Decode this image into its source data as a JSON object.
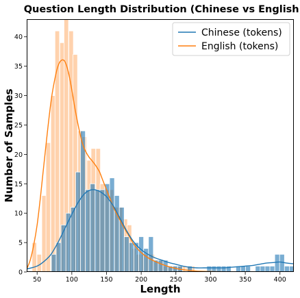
{
  "chart_data": {
    "type": "bar",
    "title": "Question Length Distribution (Chinese vs English)",
    "xlabel": "Length",
    "ylabel": "Number of Samples",
    "xlim": [
      35,
      420
    ],
    "ylim": [
      0,
      43
    ],
    "xticks": [
      50,
      100,
      150,
      200,
      250,
      300,
      350,
      400
    ],
    "yticks": [
      0,
      5,
      10,
      15,
      20,
      25,
      30,
      35,
      40
    ],
    "grid": false,
    "legend_position": "top-right",
    "series": [
      {
        "name": "Chinese (tokens)",
        "color": "#1f77b4",
        "bar_width": 7,
        "bars": [
          [
            74,
            3
          ],
          [
            81,
            5
          ],
          [
            88,
            8
          ],
          [
            95,
            10
          ],
          [
            102,
            11
          ],
          [
            109,
            17
          ],
          [
            116,
            24
          ],
          [
            123,
            14
          ],
          [
            130,
            15
          ],
          [
            137,
            14
          ],
          [
            144,
            14
          ],
          [
            151,
            15
          ],
          [
            158,
            16
          ],
          [
            165,
            13
          ],
          [
            172,
            11
          ],
          [
            179,
            6
          ],
          [
            186,
            5
          ],
          [
            193,
            5
          ],
          [
            200,
            6
          ],
          [
            207,
            4
          ],
          [
            214,
            6
          ],
          [
            221,
            2
          ],
          [
            228,
            2
          ],
          [
            235,
            2
          ],
          [
            242,
            1
          ],
          [
            249,
            1
          ],
          [
            256,
            1
          ],
          [
            263,
            0
          ],
          [
            270,
            1
          ],
          [
            277,
            0
          ],
          [
            284,
            0
          ],
          [
            291,
            0
          ],
          [
            298,
            1
          ],
          [
            305,
            1
          ],
          [
            312,
            1
          ],
          [
            319,
            1
          ],
          [
            326,
            1
          ],
          [
            333,
            0
          ],
          [
            340,
            1
          ],
          [
            347,
            1
          ],
          [
            354,
            1
          ],
          [
            361,
            0
          ],
          [
            368,
            1
          ],
          [
            375,
            1
          ],
          [
            382,
            1
          ],
          [
            389,
            1
          ],
          [
            396,
            3
          ],
          [
            403,
            3
          ],
          [
            410,
            1
          ],
          [
            417,
            1
          ]
        ],
        "kde": [
          [
            35,
            0.5
          ],
          [
            50,
            1.0
          ],
          [
            60,
            1.8
          ],
          [
            70,
            3.0
          ],
          [
            80,
            5.0
          ],
          [
            90,
            7.4
          ],
          [
            100,
            9.8
          ],
          [
            110,
            12.0
          ],
          [
            120,
            13.5
          ],
          [
            130,
            14.0
          ],
          [
            140,
            13.7
          ],
          [
            150,
            12.8
          ],
          [
            160,
            11.2
          ],
          [
            170,
            9.0
          ],
          [
            180,
            6.8
          ],
          [
            190,
            5.0
          ],
          [
            200,
            3.8
          ],
          [
            210,
            3.0
          ],
          [
            220,
            2.4
          ],
          [
            230,
            2.0
          ],
          [
            240,
            1.6
          ],
          [
            250,
            1.3
          ],
          [
            260,
            1.0
          ],
          [
            270,
            0.8
          ],
          [
            280,
            0.7
          ],
          [
            290,
            0.7
          ],
          [
            300,
            0.7
          ],
          [
            310,
            0.7
          ],
          [
            320,
            0.7
          ],
          [
            330,
            0.8
          ],
          [
            340,
            0.9
          ],
          [
            350,
            1.0
          ],
          [
            360,
            1.1
          ],
          [
            370,
            1.3
          ],
          [
            380,
            1.5
          ],
          [
            390,
            1.6
          ],
          [
            400,
            1.7
          ],
          [
            410,
            1.5
          ],
          [
            420,
            1.4
          ]
        ]
      },
      {
        "name": "English (tokens)",
        "color": "#ff7f0e",
        "bar_color": "#ffd2ad",
        "bar_width": 6.5,
        "bars": [
          [
            46,
            5
          ],
          [
            53,
            3
          ],
          [
            60,
            13
          ],
          [
            66,
            22
          ],
          [
            73,
            30
          ],
          [
            79,
            41
          ],
          [
            86,
            39
          ],
          [
            92,
            43
          ],
          [
            99,
            41
          ],
          [
            105,
            37
          ],
          [
            112,
            24
          ],
          [
            118,
            23
          ],
          [
            125,
            19
          ],
          [
            131,
            21
          ],
          [
            138,
            21
          ],
          [
            144,
            15
          ],
          [
            151,
            14
          ],
          [
            157,
            14
          ],
          [
            164,
            11
          ],
          [
            170,
            11
          ],
          [
            177,
            9
          ],
          [
            183,
            8
          ],
          [
            190,
            4
          ],
          [
            196,
            3
          ],
          [
            203,
            3
          ],
          [
            209,
            3
          ],
          [
            216,
            3
          ],
          [
            222,
            2
          ],
          [
            229,
            2
          ],
          [
            235,
            1
          ],
          [
            242,
            1
          ],
          [
            248,
            1
          ],
          [
            255,
            1
          ],
          [
            261,
            1
          ],
          [
            268,
            1
          ],
          [
            274,
            1
          ]
        ],
        "kde": [
          [
            35,
            0.5
          ],
          [
            40,
            2.0
          ],
          [
            45,
            4.5
          ],
          [
            50,
            8.0
          ],
          [
            55,
            13.0
          ],
          [
            60,
            18.5
          ],
          [
            65,
            24.0
          ],
          [
            70,
            29.0
          ],
          [
            75,
            32.5
          ],
          [
            80,
            35.0
          ],
          [
            85,
            36.0
          ],
          [
            90,
            35.8
          ],
          [
            95,
            34.0
          ],
          [
            100,
            31.0
          ],
          [
            105,
            27.5
          ],
          [
            110,
            24.5
          ],
          [
            115,
            22.0
          ],
          [
            120,
            20.5
          ],
          [
            125,
            19.5
          ],
          [
            130,
            18.8
          ],
          [
            135,
            18.0
          ],
          [
            140,
            17.0
          ],
          [
            145,
            15.5
          ],
          [
            150,
            14.0
          ],
          [
            155,
            12.5
          ],
          [
            160,
            11.0
          ],
          [
            165,
            9.8
          ],
          [
            170,
            8.7
          ],
          [
            175,
            7.6
          ],
          [
            180,
            6.6
          ],
          [
            185,
            5.6
          ],
          [
            190,
            4.6
          ],
          [
            200,
            3.3
          ],
          [
            210,
            2.4
          ],
          [
            220,
            1.8
          ],
          [
            230,
            1.3
          ],
          [
            240,
            0.9
          ],
          [
            250,
            0.6
          ],
          [
            260,
            0.4
          ],
          [
            275,
            0.2
          ],
          [
            290,
            0.1
          ],
          [
            310,
            0.05
          ],
          [
            340,
            0.02
          ],
          [
            370,
            0.0
          ],
          [
            420,
            0.0
          ]
        ]
      }
    ]
  }
}
